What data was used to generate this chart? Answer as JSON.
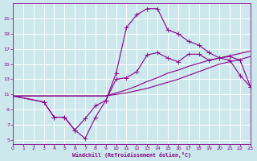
{
  "xlabel": "Windchill (Refroidissement éolien,°C)",
  "bg_color": "#cce8ec",
  "grid_color": "#ffffff",
  "line_color": "#880088",
  "xlim": [
    0,
    23
  ],
  "ylim": [
    4.5,
    23.0
  ],
  "xticks": [
    0,
    1,
    2,
    3,
    4,
    5,
    6,
    7,
    8,
    9,
    10,
    11,
    12,
    13,
    14,
    15,
    16,
    17,
    18,
    19,
    20,
    21,
    22,
    23
  ],
  "yticks": [
    5,
    7,
    9,
    11,
    13,
    15,
    17,
    19,
    21
  ],
  "line1_x": [
    0,
    1,
    2,
    3,
    4,
    5,
    6,
    7,
    8,
    9,
    10,
    11,
    12,
    13,
    14,
    15,
    16,
    17,
    18,
    19,
    20,
    21,
    22,
    23
  ],
  "line1_y": [
    10.8,
    10.8,
    10.8,
    10.8,
    10.8,
    10.8,
    10.8,
    10.8,
    10.8,
    10.8,
    11.0,
    11.2,
    11.5,
    11.8,
    12.2,
    12.6,
    13.0,
    13.5,
    14.0,
    14.5,
    15.0,
    15.3,
    15.6,
    16.0
  ],
  "line2_x": [
    0,
    1,
    2,
    3,
    4,
    5,
    6,
    7,
    8,
    9,
    10,
    11,
    12,
    13,
    14,
    15,
    16,
    17,
    18,
    19,
    20,
    21,
    22,
    23
  ],
  "line2_y": [
    10.8,
    10.8,
    10.8,
    10.8,
    10.8,
    10.8,
    10.8,
    10.8,
    10.8,
    10.8,
    11.2,
    11.6,
    12.1,
    12.7,
    13.2,
    13.8,
    14.2,
    14.7,
    15.1,
    15.5,
    15.8,
    16.1,
    16.4,
    16.7
  ],
  "line3_x": [
    0,
    3,
    4,
    5,
    6,
    7,
    8,
    9,
    10,
    11,
    12,
    13,
    14,
    15,
    16,
    17,
    18,
    19,
    20,
    21,
    22,
    23
  ],
  "line3_y": [
    10.8,
    10.0,
    8.0,
    8.0,
    6.3,
    5.2,
    8.0,
    10.2,
    13.8,
    19.8,
    21.5,
    22.3,
    22.3,
    19.5,
    19.0,
    18.0,
    17.5,
    16.5,
    15.8,
    15.5,
    13.5,
    12.0
  ],
  "line4_x": [
    0,
    3,
    4,
    5,
    6,
    7,
    8,
    9,
    10,
    11,
    12,
    13,
    14,
    15,
    16,
    17,
    18,
    19,
    20,
    21,
    22,
    23
  ],
  "line4_y": [
    10.8,
    10.0,
    8.0,
    8.0,
    6.3,
    7.8,
    9.5,
    10.2,
    13.0,
    13.2,
    14.0,
    16.2,
    16.5,
    15.8,
    15.3,
    16.3,
    16.3,
    15.5,
    15.8,
    16.0,
    15.5,
    12.0
  ]
}
